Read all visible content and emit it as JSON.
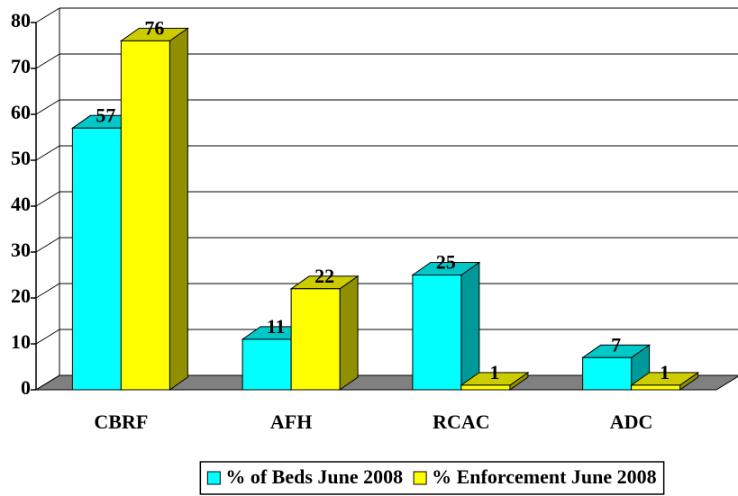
{
  "chart_data": {
    "type": "bar3d",
    "categories": [
      "CBRF",
      "AFH",
      "RCAC",
      "ADC"
    ],
    "series": [
      {
        "name": "% of Beds June 2008",
        "color": "#00ffff",
        "values": [
          57,
          11,
          25,
          7
        ]
      },
      {
        "name": "% Enforcement June 2008",
        "color": "#ffff00",
        "values": [
          76,
          22,
          1,
          1
        ]
      }
    ],
    "ylim": [
      0,
      80
    ],
    "yticks": [
      0,
      10,
      20,
      30,
      40,
      50,
      60,
      70,
      80
    ],
    "grid": true,
    "legend": "bottom"
  }
}
